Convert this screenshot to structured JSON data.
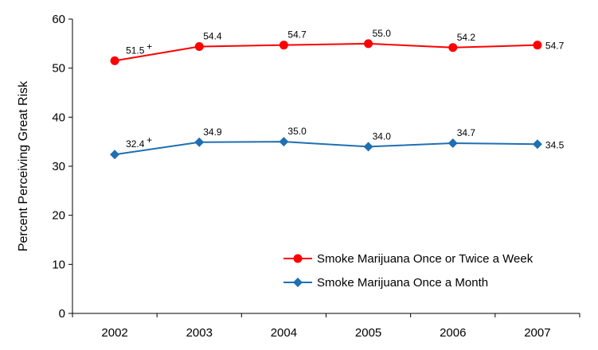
{
  "chart_data": {
    "type": "line",
    "title": "",
    "xlabel": "",
    "ylabel": "Percent Perceiving Great Risk",
    "categories": [
      "2002",
      "2003",
      "2004",
      "2005",
      "2006",
      "2007"
    ],
    "ylim": [
      0,
      60
    ],
    "yticks": [
      "0",
      "10",
      "20",
      "30",
      "40",
      "50",
      "60"
    ],
    "grid": false,
    "legend_position": "bottom-right",
    "series": [
      {
        "name": "Smoke Marijuana Once or Twice a Week",
        "values": [
          51.5,
          54.4,
          54.7,
          55.0,
          54.2,
          54.7
        ],
        "labels": [
          "51.5",
          "54.4",
          "54.7",
          "55.0",
          "54.2",
          "54.7"
        ],
        "superscripts": [
          "+",
          "",
          "",
          "",
          "",
          ""
        ],
        "color": "#ff0000",
        "marker": "circle"
      },
      {
        "name": "Smoke Marijuana Once a Month",
        "values": [
          32.4,
          34.9,
          35.0,
          34.0,
          34.7,
          34.5
        ],
        "labels": [
          "32.4",
          "34.9",
          "35.0",
          "34.0",
          "34.7",
          "34.5"
        ],
        "superscripts": [
          "+",
          "",
          "",
          "",
          "",
          ""
        ],
        "color": "#1f6fb2",
        "marker": "diamond"
      }
    ]
  }
}
